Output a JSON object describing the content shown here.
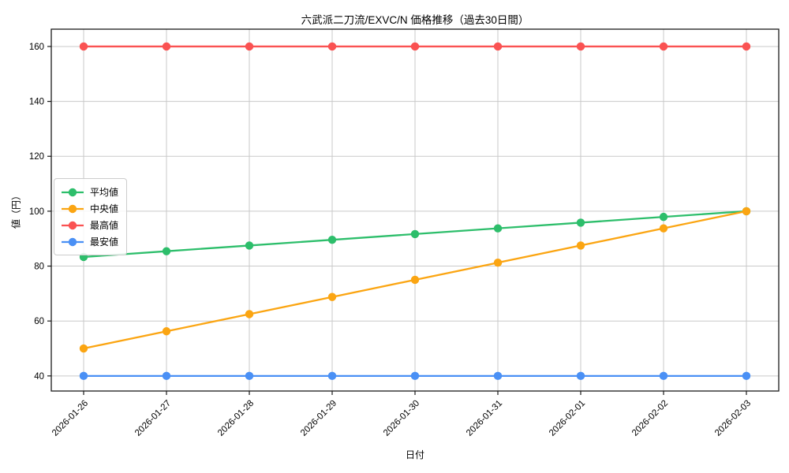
{
  "chart_data": {
    "type": "line",
    "title": "六武派二刀流/EXVC/N 価格推移（過去30日間）",
    "xlabel": "日付",
    "ylabel": "値（円）",
    "x": [
      "2026-01-26",
      "2026-01-27",
      "2026-01-28",
      "2026-01-29",
      "2026-01-30",
      "2026-01-31",
      "2026-02-01",
      "2026-02-02",
      "2026-02-03"
    ],
    "yticks": [
      40,
      60,
      80,
      100,
      120,
      140,
      160
    ],
    "ylim": [
      34.5,
      166.3
    ],
    "grid": true,
    "legend_position": "center-left",
    "series": [
      {
        "name": "平均値",
        "color": "#2dbe6b",
        "values": [
          83.33,
          85.42,
          87.5,
          89.58,
          91.67,
          93.75,
          95.83,
          97.92,
          100
        ]
      },
      {
        "name": "中央値",
        "color": "#fba512",
        "values": [
          50,
          56.25,
          62.5,
          68.75,
          75,
          81.25,
          87.5,
          93.75,
          100
        ]
      },
      {
        "name": "最高値",
        "color": "#fa5252",
        "values": [
          160,
          160,
          160,
          160,
          160,
          160,
          160,
          160,
          160
        ]
      },
      {
        "name": "最安値",
        "color": "#4a90f5",
        "values": [
          40,
          40,
          40,
          40,
          40,
          40,
          40,
          40,
          40
        ]
      }
    ]
  },
  "colors": {
    "grid": "#c9c9c9",
    "axis": "#1a1a1a",
    "tick_text": "#000000",
    "background": "#ffffff"
  }
}
